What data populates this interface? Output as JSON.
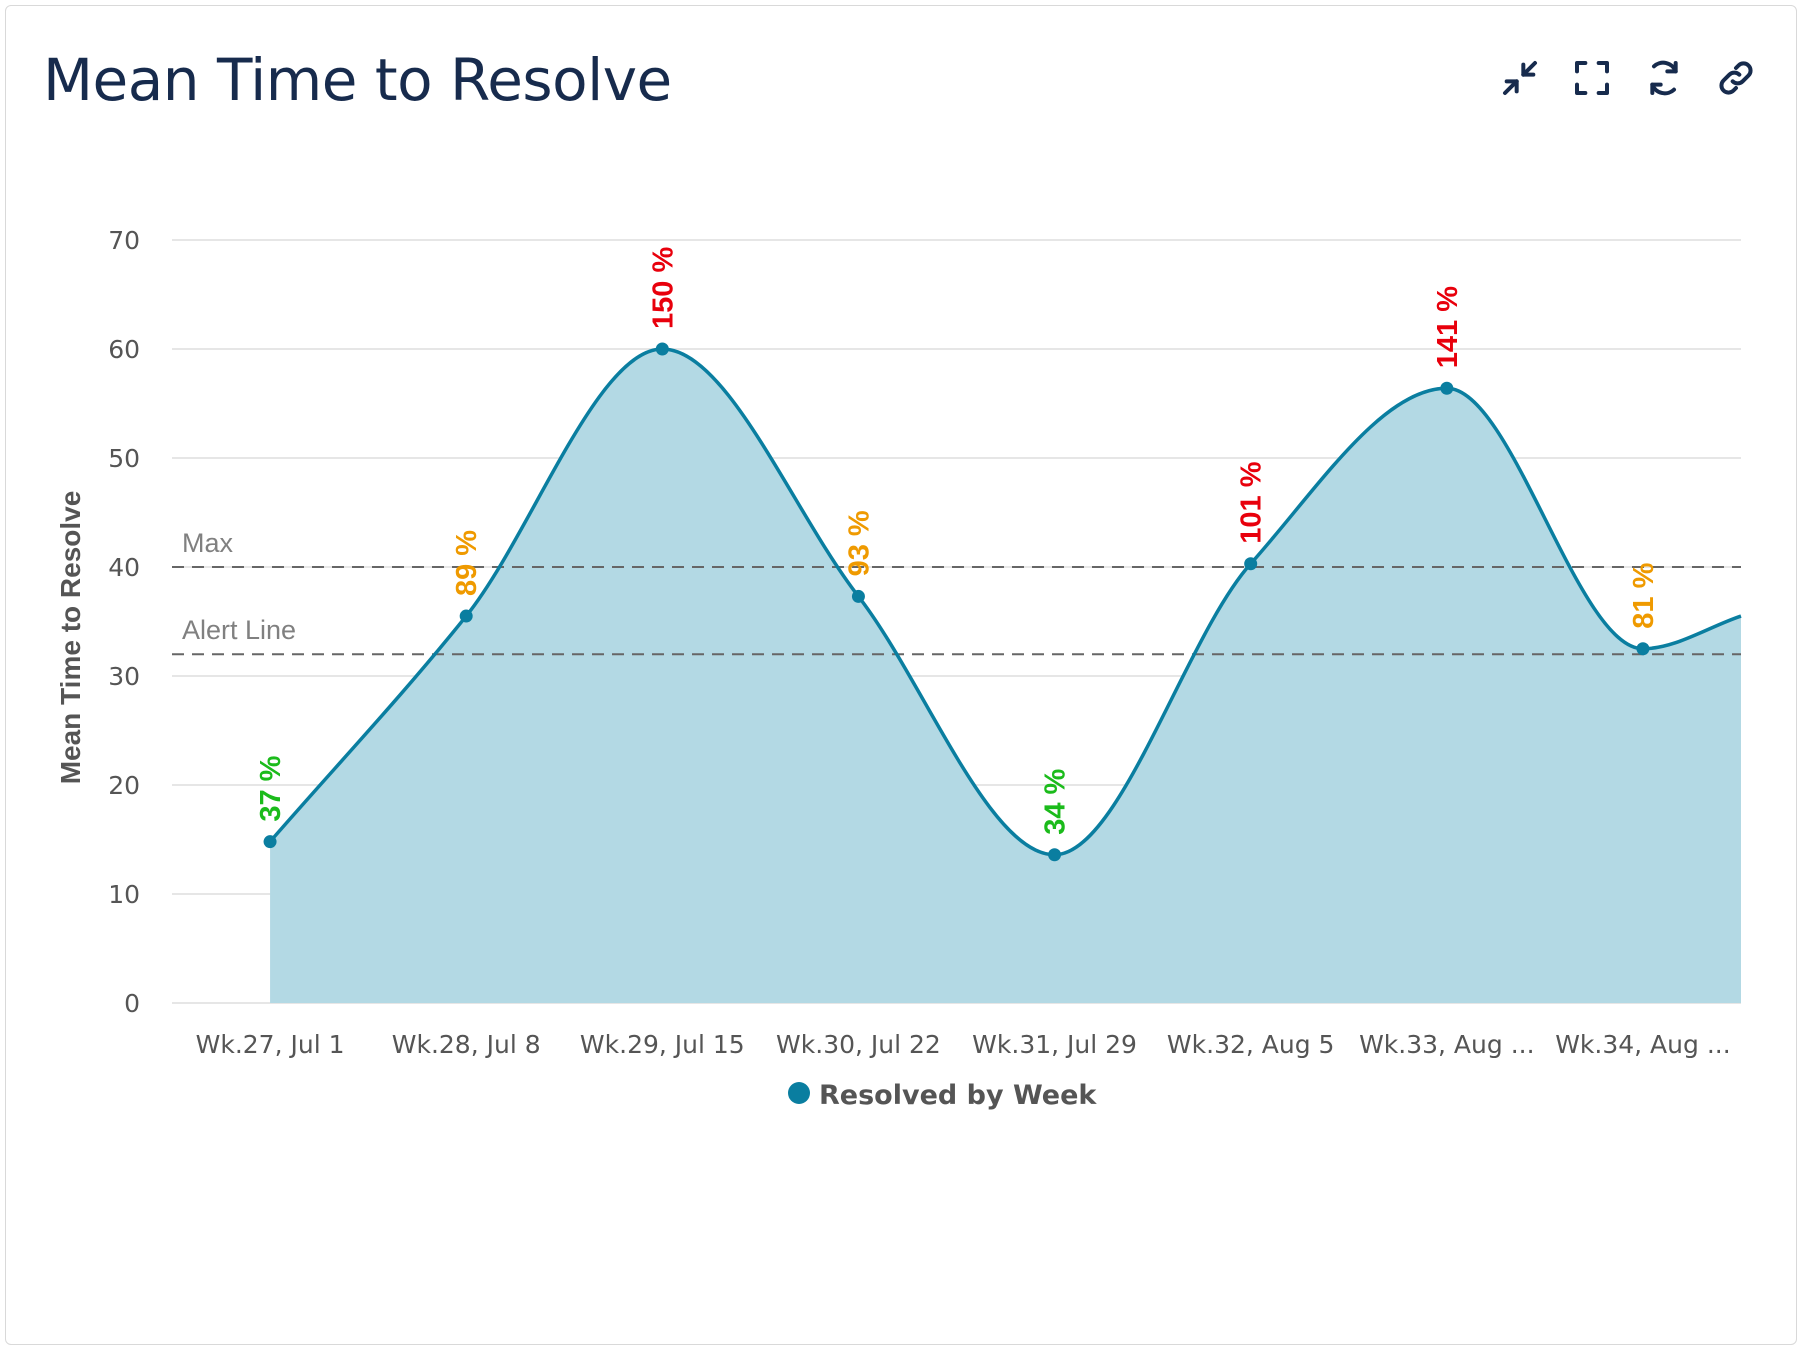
{
  "header": {
    "title": "Mean Time to Resolve",
    "icons": [
      "collapse-icon",
      "fullscreen-icon",
      "refresh-icon",
      "link-icon"
    ]
  },
  "colors": {
    "series": "#0a7ea0",
    "fill": "#b3d9e4",
    "grid": "#e6e6e6",
    "reference": "#666666",
    "good": "#1bbb1b",
    "warn": "#ef9a00",
    "bad": "#e8000c"
  },
  "chart_data": {
    "type": "area",
    "title": "",
    "xlabel": "",
    "ylabel": "Mean Time to Resolve",
    "ylim": [
      0,
      70
    ],
    "yticks": [
      0,
      10,
      20,
      30,
      40,
      50,
      60,
      70
    ],
    "grid": true,
    "categories": [
      "Wk.27, Jul 1",
      "Wk.28, Jul 8",
      "Wk.29, Jul 15",
      "Wk.30, Jul 22",
      "Wk.31, Jul 29",
      "Wk.32, Aug 5",
      "Wk.33, Aug ...",
      "Wk.34, Aug ..."
    ],
    "series": [
      {
        "name": "Resolved by Week",
        "values": [
          14.8,
          35.5,
          60.0,
          37.3,
          13.6,
          40.3,
          56.4,
          32.5
        ],
        "trailing_value": 35.5,
        "labels": [
          "37 %",
          "89 %",
          "150 %",
          "93 %",
          "34 %",
          "101 %",
          "141 %",
          "81 %"
        ],
        "label_status": [
          "good",
          "warn",
          "bad",
          "warn",
          "good",
          "bad",
          "bad",
          "warn"
        ]
      }
    ],
    "reference_lines": [
      {
        "name": "Max",
        "value": 40
      },
      {
        "name": "Alert Line",
        "value": 32
      }
    ],
    "legend": {
      "position": "bottom-center",
      "items": [
        "Resolved by Week"
      ]
    }
  }
}
